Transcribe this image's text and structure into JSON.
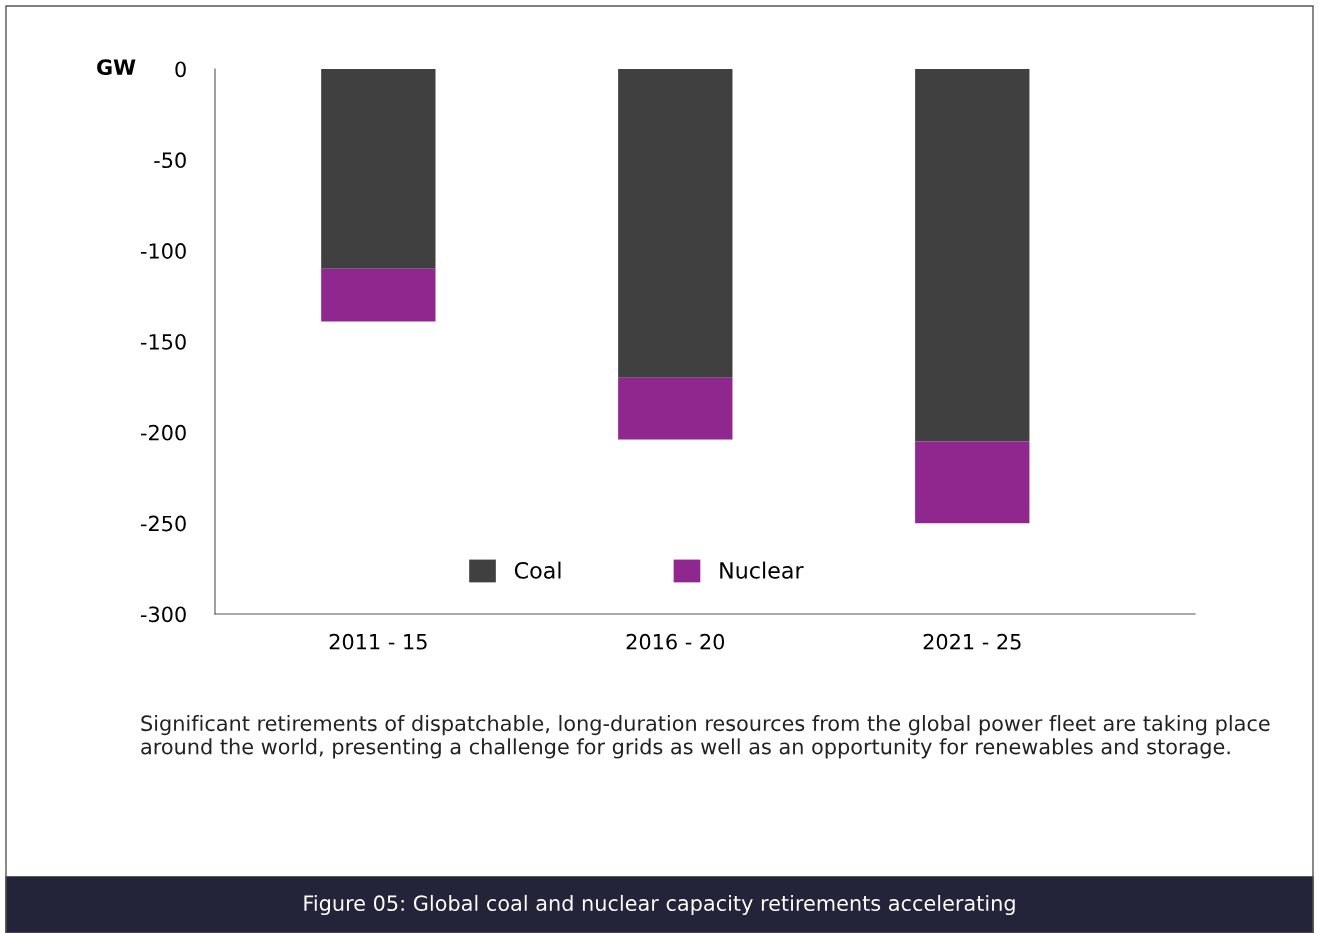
{
  "chart_data": {
    "type": "bar",
    "stacked": true,
    "title": "Figure 05: Global coal and nuclear capacity retirements accelerating",
    "ylabel": "GW",
    "categories": [
      "2011 - 15",
      "2016 - 20",
      "2021 - 25"
    ],
    "series": [
      {
        "name": "Coal",
        "color": "#404040",
        "values": [
          -110,
          -170,
          -205
        ]
      },
      {
        "name": "Nuclear",
        "color": "#90278e",
        "values": [
          -29,
          -34,
          -45
        ]
      }
    ],
    "ylim": [
      -300,
      0
    ],
    "yticks": [
      0,
      -50,
      -100,
      -150,
      -200,
      -250,
      -300
    ],
    "grid": false,
    "legend": "bottom",
    "annotations": [
      "Significant retirements of dispatchable, long-duration resources from the global power fleet are taking place around the world, presenting a challenge for grids as well as an opportunity for renewables and storage."
    ]
  }
}
